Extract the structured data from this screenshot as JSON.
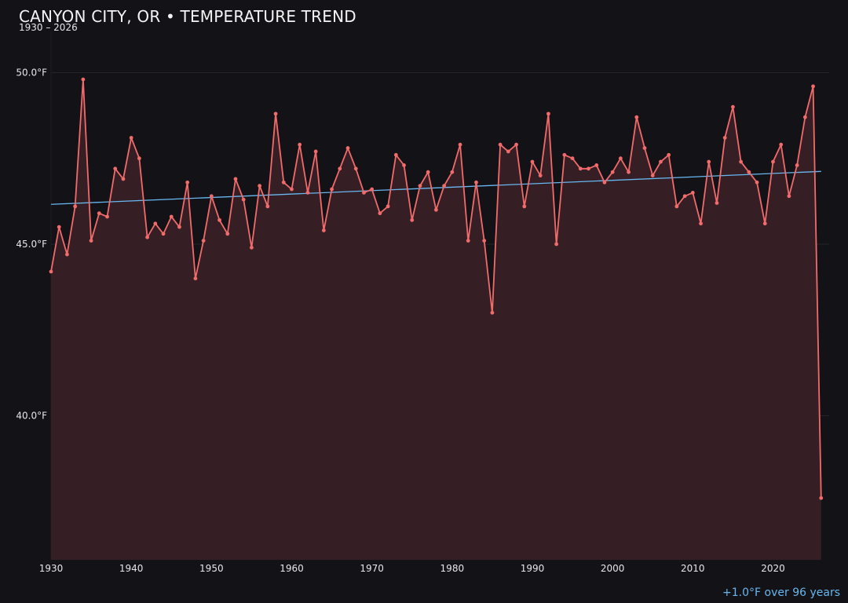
{
  "header": {
    "title": "CANYON CITY, OR • TEMPERATURE TREND",
    "subtitle": "1930 – 2026"
  },
  "footer": {
    "trend_note": "+1.0°F over 96 years"
  },
  "colors": {
    "background": "#131217",
    "series_line": "#f26b6b",
    "series_fill": "#351f25",
    "trend_line": "#67b7f0",
    "grid": "#25242a",
    "text": "#e6e6ea"
  },
  "chart_data": {
    "type": "line",
    "title": "CANYON CITY, OR • TEMPERATURE TREND",
    "subtitle": "1930 – 2026",
    "xlabel": "",
    "ylabel": "",
    "xlim": [
      1930,
      2027
    ],
    "ylim": [
      35.8,
      51.2
    ],
    "x_ticks": [
      1930,
      1940,
      1950,
      1960,
      1970,
      1980,
      1990,
      2000,
      2010,
      2020
    ],
    "y_ticks": [
      {
        "value": 40,
        "label": "40.0°F"
      },
      {
        "value": 45,
        "label": "45.0°F"
      },
      {
        "value": 50,
        "label": "50.0°F"
      }
    ],
    "grid": true,
    "area_fill": true,
    "series": [
      {
        "x": [
          1930,
          1931,
          1932,
          1933,
          1934,
          1935,
          1936,
          1937,
          1938,
          1939,
          1940,
          1941,
          1942,
          1943,
          1944,
          1945,
          1946,
          1947,
          1948,
          1949,
          1950,
          1951,
          1952,
          1953,
          1954,
          1955,
          1956,
          1957,
          1958,
          1959,
          1960,
          1961,
          1962,
          1963,
          1964,
          1965,
          1966,
          1967,
          1968,
          1969,
          1970,
          1971,
          1972,
          1973,
          1974,
          1975,
          1976,
          1977,
          1978,
          1979,
          1980,
          1981,
          1982,
          1983,
          1984,
          1985,
          1986,
          1987,
          1988,
          1989,
          1990,
          1991,
          1992,
          1993,
          1994,
          1995,
          1996,
          1997,
          1998,
          1999,
          2000,
          2001,
          2002,
          2003,
          2004,
          2005,
          2006,
          2007,
          2008,
          2009,
          2010,
          2011,
          2012,
          2013,
          2014,
          2015,
          2016,
          2017,
          2018,
          2019,
          2020,
          2021,
          2022,
          2023,
          2024,
          2025,
          2026
        ],
        "values": [
          44.2,
          45.5,
          44.7,
          46.1,
          49.8,
          45.1,
          45.9,
          45.8,
          47.2,
          46.9,
          48.1,
          47.5,
          45.2,
          45.6,
          45.3,
          45.8,
          45.5,
          46.8,
          44.0,
          45.1,
          46.4,
          45.7,
          45.3,
          46.9,
          46.3,
          44.9,
          46.7,
          46.1,
          48.8,
          46.8,
          46.6,
          47.9,
          46.5,
          47.7,
          45.4,
          46.6,
          47.2,
          47.8,
          47.2,
          46.5,
          46.6,
          45.9,
          46.1,
          47.6,
          47.3,
          45.7,
          46.7,
          47.1,
          46.0,
          46.7,
          47.1,
          47.9,
          45.1,
          46.8,
          45.1,
          43.0,
          47.9,
          47.7,
          47.9,
          46.1,
          47.4,
          47.0,
          48.8,
          45.0,
          47.6,
          47.5,
          47.2,
          47.2,
          47.3,
          46.8,
          47.1,
          47.5,
          47.1,
          48.7,
          47.8,
          47.0,
          47.4,
          47.6,
          46.1,
          46.4,
          46.5,
          45.6,
          47.4,
          46.2,
          48.1,
          49.0,
          47.4,
          47.1,
          46.8,
          45.6,
          47.4,
          47.9,
          46.4,
          47.3,
          48.7,
          49.6,
          37.6
        ]
      }
    ],
    "trendline": {
      "x": [
        1930,
        2026
      ],
      "values": [
        46.16,
        47.12
      ]
    }
  }
}
